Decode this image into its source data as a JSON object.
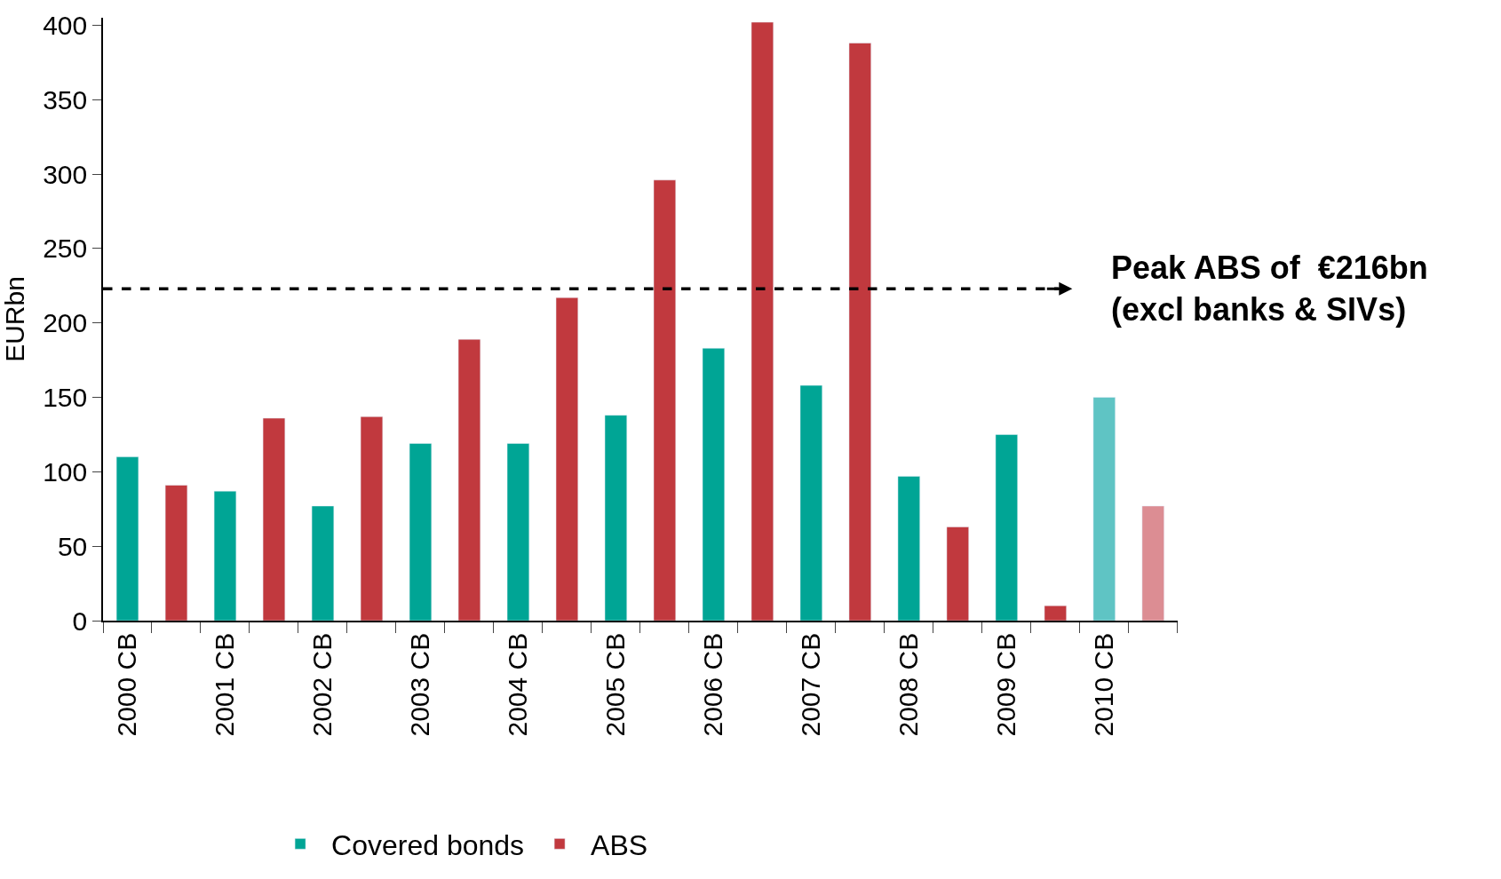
{
  "chart_data": {
    "type": "bar",
    "ylabel": "EURbn",
    "categories": [
      "2000 CB",
      null,
      "2001 CB",
      null,
      "2002 CB",
      null,
      "2003 CB",
      null,
      "2004 CB",
      null,
      "2005 CB",
      null,
      "2006 CB",
      null,
      "2007 CB",
      null,
      "2008 CB",
      null,
      "2009 CB",
      null,
      "2010 CB",
      null
    ],
    "series": [
      {
        "name": "Covered bonds",
        "color": "#00a595",
        "colors": [
          "#00a595",
          null,
          "#00a595",
          null,
          "#00a595",
          null,
          "#00a595",
          null,
          "#00a595",
          null,
          "#00a595",
          null,
          "#00a595",
          null,
          "#00a595",
          null,
          "#00a595",
          null,
          "#00a595",
          null,
          "#5fc4c4",
          null
        ],
        "values": [
          110,
          null,
          87,
          null,
          77,
          null,
          119,
          null,
          119,
          null,
          138,
          null,
          183,
          null,
          158,
          null,
          97,
          null,
          125,
          null,
          150,
          null
        ]
      },
      {
        "name": "ABS",
        "color": "#c1393e",
        "colors": [
          null,
          "#c1393e",
          null,
          "#c1393e",
          null,
          "#c1393e",
          null,
          "#c1393e",
          null,
          "#c1393e",
          null,
          "#c1393e",
          null,
          "#c1393e",
          null,
          "#c1393e",
          null,
          "#c1393e",
          null,
          "#c1393e",
          null,
          "#dc8d93"
        ],
        "values": [
          null,
          91,
          null,
          136,
          null,
          137,
          null,
          189,
          null,
          217,
          null,
          296,
          null,
          402,
          null,
          388,
          null,
          63,
          null,
          10,
          null,
          77
        ]
      }
    ],
    "ylim": [
      0,
      405
    ],
    "yticks": [
      0,
      50,
      100,
      150,
      200,
      250,
      300,
      350,
      400
    ],
    "ref_lines": [
      {
        "axis": "y",
        "value": 223,
        "label": "Peak ABS of  €216bn\n(excl banks & SIVs)",
        "color": "#000000",
        "line_style": "dashed"
      }
    ],
    "legend": "bottom"
  }
}
